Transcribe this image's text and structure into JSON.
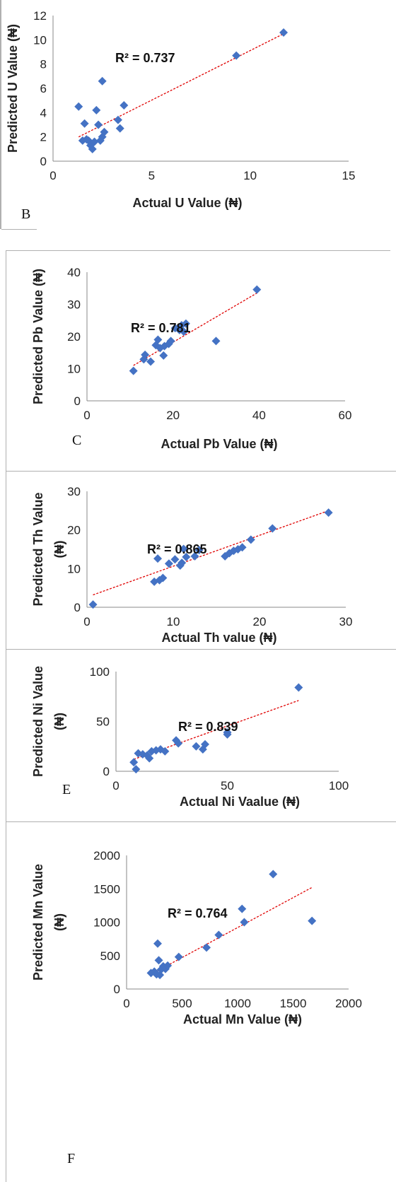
{
  "chart_data": [
    {
      "id": "B",
      "type": "scatter",
      "panel_label": "B",
      "xlabel": "Actual U Value (₦)",
      "ylabel": "Predicted U Value (₦)",
      "xlim": [
        0,
        15
      ],
      "ylim": [
        0,
        12
      ],
      "xticks": [
        0,
        5,
        10,
        15
      ],
      "yticks": [
        0,
        2,
        4,
        6,
        8,
        10,
        12
      ],
      "r2_label": "R² = 0.737",
      "marker_color": "#4472c4",
      "trend_color": "#e00000",
      "trendline": [
        [
          1.3,
          2.0
        ],
        [
          11.7,
          10.5
        ]
      ],
      "points": [
        [
          1.3,
          4.5
        ],
        [
          1.5,
          1.7
        ],
        [
          1.6,
          3.1
        ],
        [
          1.7,
          1.8
        ],
        [
          1.8,
          1.7
        ],
        [
          1.9,
          1.3
        ],
        [
          2.0,
          1.0
        ],
        [
          2.1,
          1.6
        ],
        [
          2.2,
          4.2
        ],
        [
          2.3,
          3.0
        ],
        [
          2.4,
          1.7
        ],
        [
          2.5,
          2.0
        ],
        [
          2.6,
          2.4
        ],
        [
          2.5,
          6.6
        ],
        [
          3.3,
          3.4
        ],
        [
          3.4,
          2.7
        ],
        [
          3.6,
          4.6
        ],
        [
          9.3,
          8.7
        ],
        [
          11.7,
          10.6
        ]
      ]
    },
    {
      "id": "C",
      "type": "scatter",
      "panel_label": "C",
      "xlabel": "Actual Pb Value (₦)",
      "ylabel": "Predicted Pb Value (₦)",
      "xlim": [
        0,
        60
      ],
      "ylim": [
        0,
        40
      ],
      "xticks": [
        0,
        20,
        40,
        60
      ],
      "yticks": [
        0,
        10,
        20,
        30,
        40
      ],
      "r2_label": "R² = 0.781",
      "marker_color": "#4472c4",
      "trend_color": "#e00000",
      "trendline": [
        [
          10.8,
          11.0
        ],
        [
          39.5,
          33.5
        ]
      ],
      "points": [
        [
          10.8,
          9.3
        ],
        [
          13.2,
          12.9
        ],
        [
          13.5,
          14.3
        ],
        [
          14.8,
          12.2
        ],
        [
          16.0,
          17.3
        ],
        [
          16.5,
          19.0
        ],
        [
          17.0,
          16.4
        ],
        [
          17.8,
          14.1
        ],
        [
          18.0,
          17.0
        ],
        [
          19.0,
          17.7
        ],
        [
          19.5,
          18.6
        ],
        [
          20.5,
          22.6
        ],
        [
          21.5,
          22.0
        ],
        [
          22.0,
          23.5
        ],
        [
          22.5,
          21.5
        ],
        [
          23.0,
          24.0
        ],
        [
          30.0,
          18.6
        ],
        [
          39.5,
          34.6
        ]
      ]
    },
    {
      "id": "D",
      "type": "scatter",
      "panel_label": "",
      "xlabel": "Actual Th value (₦)",
      "ylabel_lines": [
        "Predicted Th Value",
        "(₦)"
      ],
      "xlim": [
        0,
        30
      ],
      "ylim": [
        0,
        30
      ],
      "xticks": [
        0,
        10,
        20,
        30
      ],
      "yticks": [
        0,
        10,
        20,
        30
      ],
      "r2_label": "R² = 0.865",
      "marker_color": "#4472c4",
      "trend_color": "#e00000",
      "trendline": [
        [
          0.7,
          3.2
        ],
        [
          28.0,
          25.0
        ]
      ],
      "points": [
        [
          0.7,
          0.7
        ],
        [
          7.8,
          6.6
        ],
        [
          8.2,
          12.6
        ],
        [
          8.4,
          7.0
        ],
        [
          8.8,
          7.6
        ],
        [
          9.5,
          11.3
        ],
        [
          10.2,
          12.4
        ],
        [
          10.8,
          10.8
        ],
        [
          11.0,
          11.5
        ],
        [
          11.2,
          15.1
        ],
        [
          11.5,
          13.0
        ],
        [
          12.5,
          13.2
        ],
        [
          13.0,
          14.8
        ],
        [
          16.0,
          13.2
        ],
        [
          16.5,
          14.0
        ],
        [
          17.0,
          14.6
        ],
        [
          17.5,
          15.0
        ],
        [
          18.0,
          15.5
        ],
        [
          19.0,
          17.5
        ],
        [
          21.5,
          20.4
        ],
        [
          28.0,
          24.5
        ]
      ]
    },
    {
      "id": "E",
      "type": "scatter",
      "panel_label": "E",
      "xlabel": "Actual Ni Vaalue (₦)",
      "ylabel_lines": [
        "Predicted Ni Value",
        "(₦)"
      ],
      "xlim": [
        0,
        100
      ],
      "ylim": [
        0,
        100
      ],
      "xticks": [
        0,
        50,
        100
      ],
      "yticks": [
        0,
        50,
        100
      ],
      "r2_label": "R² = 0.839",
      "marker_color": "#4472c4",
      "trend_color": "#e00000",
      "trendline": [
        [
          8,
          12
        ],
        [
          82,
          71
        ]
      ],
      "points": [
        [
          8,
          9
        ],
        [
          9,
          2
        ],
        [
          10,
          18
        ],
        [
          12,
          17
        ],
        [
          14,
          16
        ],
        [
          15,
          13
        ],
        [
          16,
          20
        ],
        [
          18,
          21
        ],
        [
          20,
          22
        ],
        [
          22,
          20
        ],
        [
          27,
          31
        ],
        [
          28,
          28
        ],
        [
          36,
          25
        ],
        [
          39,
          22
        ],
        [
          40,
          27
        ],
        [
          50,
          37
        ],
        [
          50,
          39
        ],
        [
          82,
          84
        ]
      ]
    },
    {
      "id": "F",
      "type": "scatter",
      "panel_label": "F",
      "xlabel": "Actual Mn Value (₦)",
      "ylabel_lines": [
        "Predicted Mn Value",
        "(₦)"
      ],
      "xlim": [
        0,
        2000
      ],
      "ylim": [
        0,
        2000
      ],
      "xticks": [
        0,
        500,
        1000,
        1500,
        2000
      ],
      "yticks": [
        0,
        500,
        1000,
        1500,
        2000
      ],
      "r2_label": "R² = 0.764",
      "marker_color": "#4472c4",
      "trend_color": "#e00000",
      "trendline": [
        [
          220,
          220
        ],
        [
          1670,
          1520
        ]
      ],
      "points": [
        [
          220,
          240
        ],
        [
          250,
          260
        ],
        [
          270,
          220
        ],
        [
          280,
          680
        ],
        [
          290,
          430
        ],
        [
          300,
          210
        ],
        [
          310,
          290
        ],
        [
          330,
          340
        ],
        [
          350,
          300
        ],
        [
          370,
          350
        ],
        [
          470,
          480
        ],
        [
          720,
          620
        ],
        [
          830,
          810
        ],
        [
          1040,
          1200
        ],
        [
          1060,
          1000
        ],
        [
          1320,
          1720
        ],
        [
          1670,
          1020
        ]
      ]
    }
  ]
}
